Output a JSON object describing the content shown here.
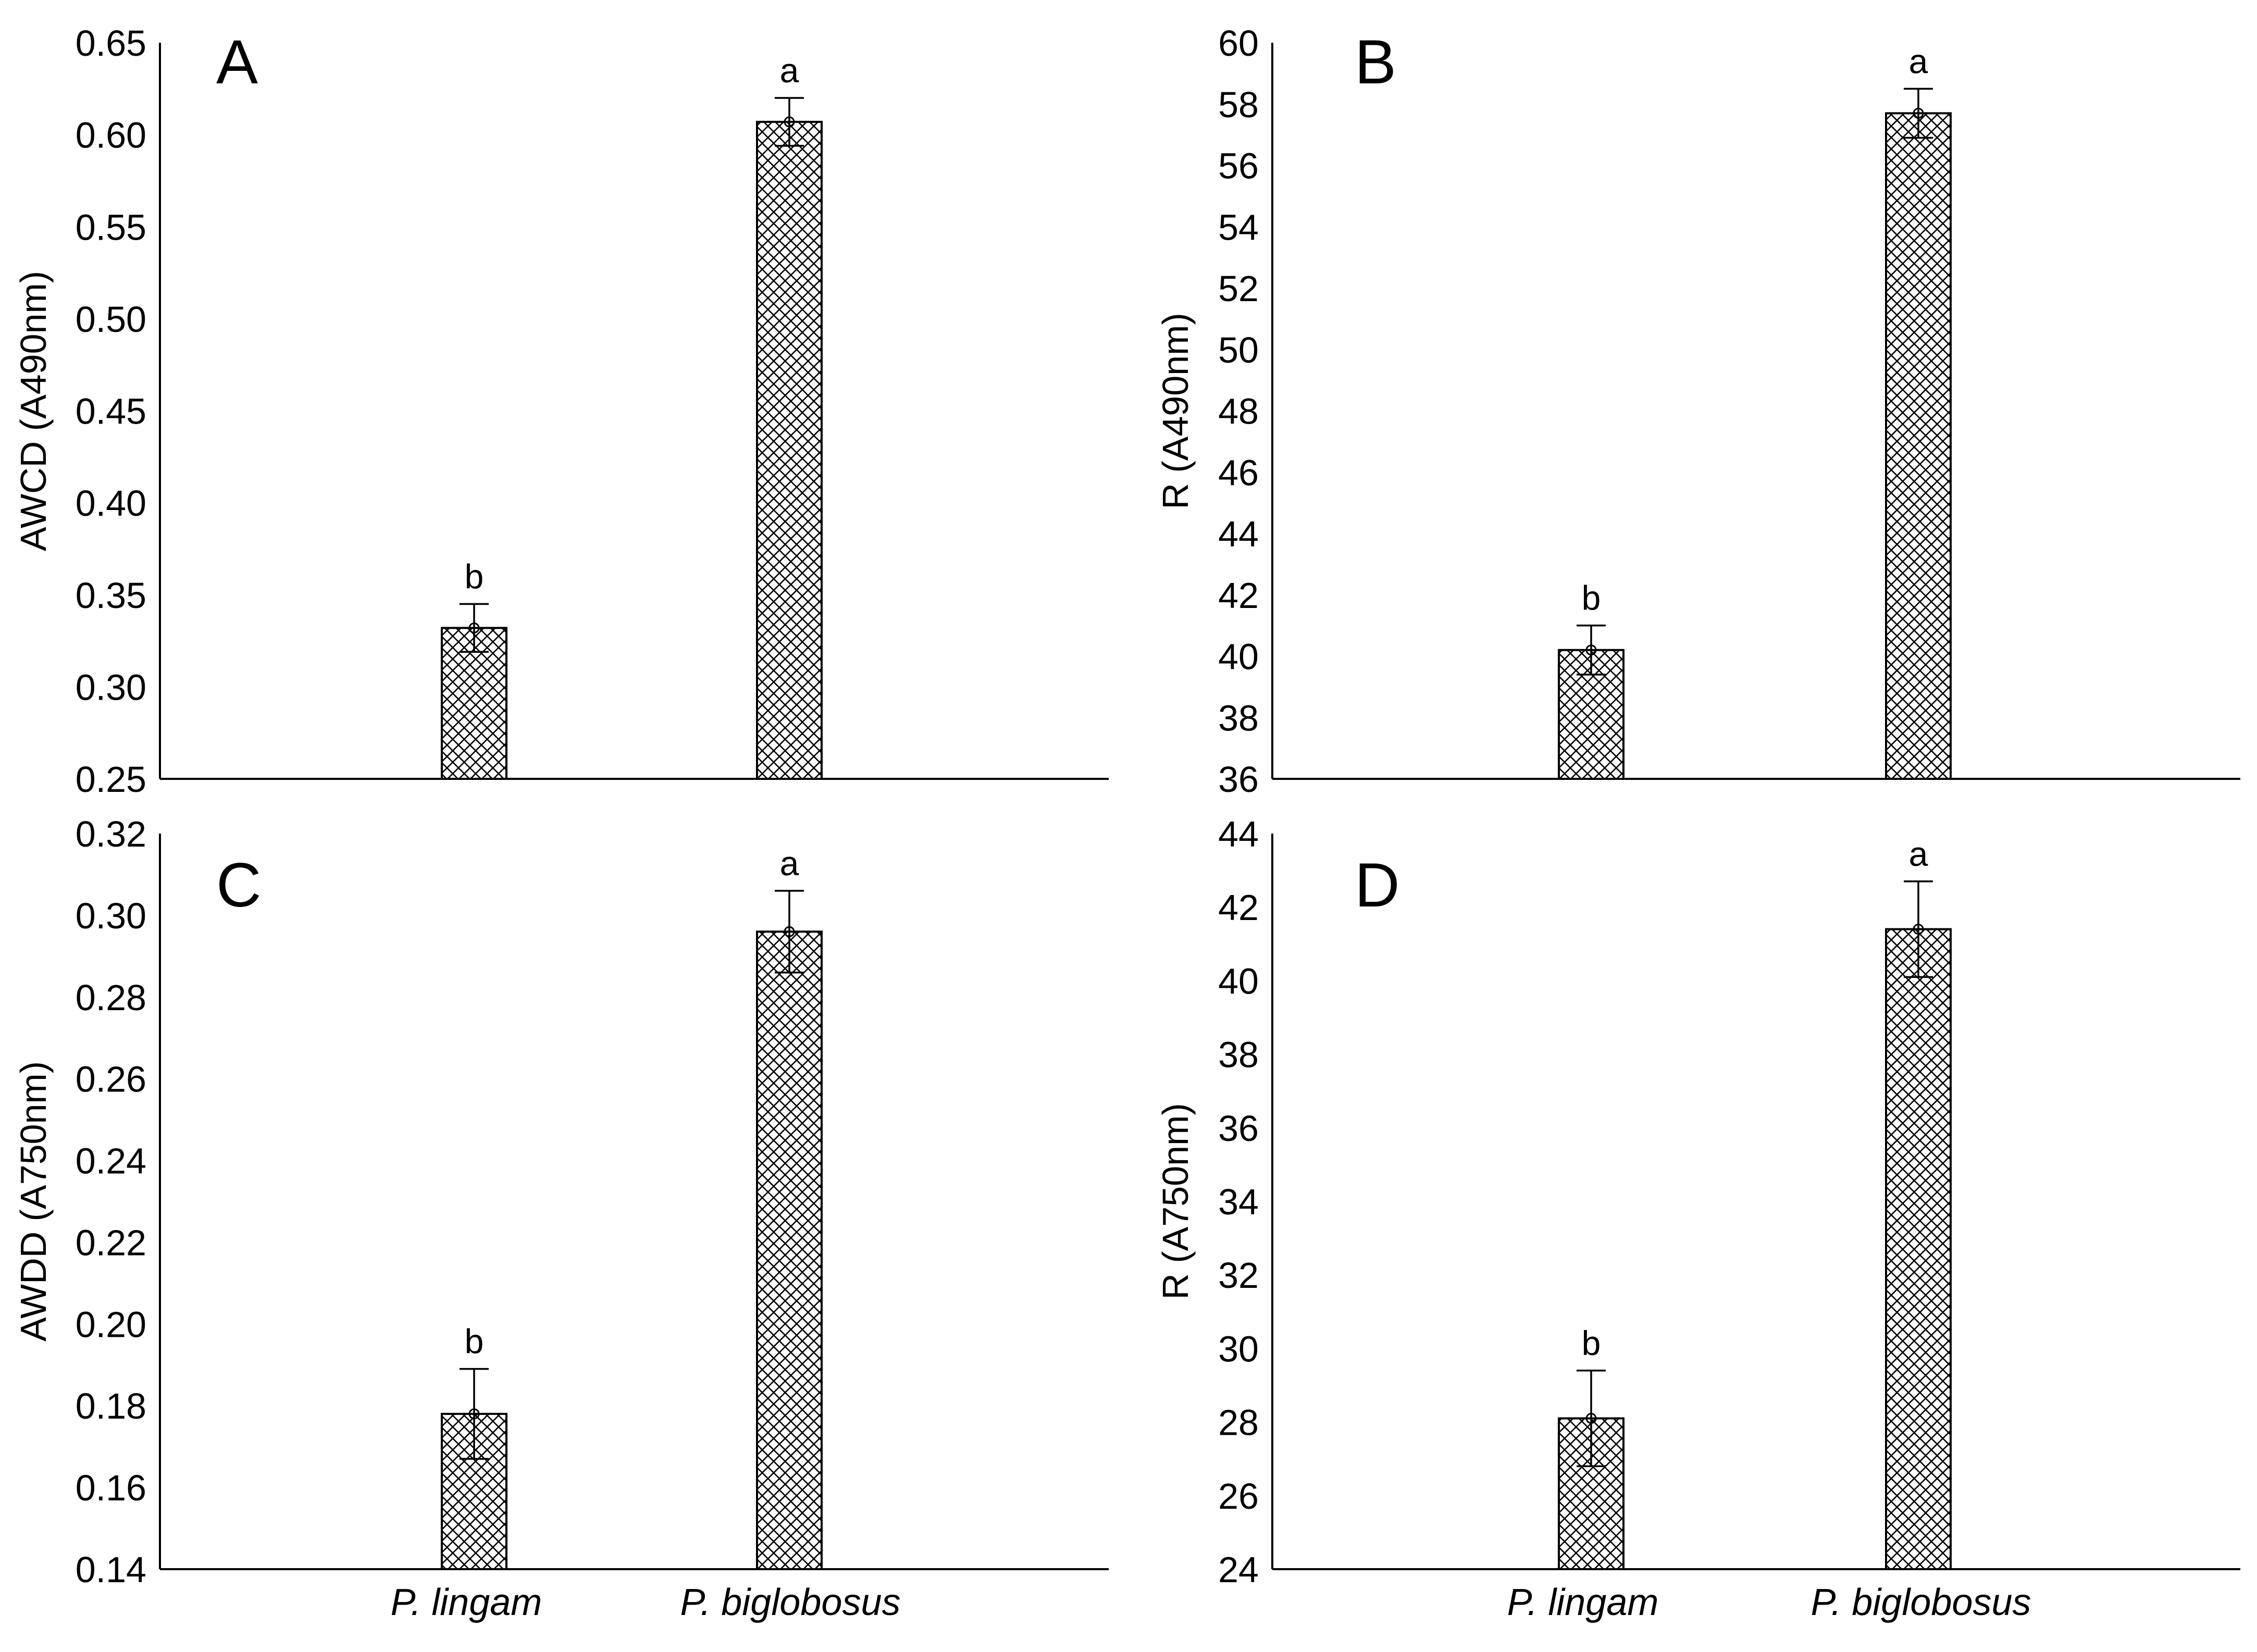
{
  "chart_data": [
    {
      "type": "bar",
      "panel_label": "A",
      "categories": [
        "P. lingam",
        "P. biglobosus"
      ],
      "values": [
        0.332,
        0.607
      ],
      "errors": [
        0.013,
        0.013
      ],
      "significance": [
        "b",
        "a"
      ],
      "title": "",
      "xlabel": "",
      "ylabel": "AWCD (A490nm)",
      "ylim": [
        0.25,
        0.65
      ],
      "yticks": [
        0.25,
        0.3,
        0.35,
        0.4,
        0.45,
        0.5,
        0.55,
        0.6,
        0.65
      ],
      "ytick_labels": [
        "0.25",
        "0.30",
        "0.35",
        "0.40",
        "0.45",
        "0.50",
        "0.55",
        "0.60",
        "0.65"
      ],
      "show_category_labels": false
    },
    {
      "type": "bar",
      "panel_label": "B",
      "categories": [
        "P. lingam",
        "P. biglobosus"
      ],
      "values": [
        40.2,
        57.7
      ],
      "errors": [
        0.8,
        0.8
      ],
      "significance": [
        "b",
        "a"
      ],
      "title": "",
      "xlabel": "",
      "ylabel": "R (A490nm)",
      "ylim": [
        36,
        60
      ],
      "yticks": [
        36,
        38,
        40,
        42,
        44,
        46,
        48,
        50,
        52,
        54,
        56,
        58,
        60
      ],
      "ytick_labels": [
        "36",
        "38",
        "40",
        "42",
        "44",
        "46",
        "48",
        "50",
        "52",
        "54",
        "56",
        "58",
        "60"
      ],
      "show_category_labels": false
    },
    {
      "type": "bar",
      "panel_label": "C",
      "categories": [
        "P. lingam",
        "P. biglobosus"
      ],
      "values": [
        0.178,
        0.296
      ],
      "errors": [
        0.011,
        0.01
      ],
      "significance": [
        "b",
        "a"
      ],
      "title": "",
      "xlabel": "",
      "ylabel": "AWDD (A750nm)",
      "ylim": [
        0.14,
        0.32
      ],
      "yticks": [
        0.14,
        0.16,
        0.18,
        0.2,
        0.22,
        0.24,
        0.26,
        0.28,
        0.3,
        0.32
      ],
      "ytick_labels": [
        "0.14",
        "0.16",
        "0.18",
        "0.20",
        "0.22",
        "0.24",
        "0.26",
        "0.28",
        "0.30",
        "0.32"
      ],
      "show_category_labels": true
    },
    {
      "type": "bar",
      "panel_label": "D",
      "categories": [
        "P. lingam",
        "P. biglobosus"
      ],
      "values": [
        28.1,
        41.4
      ],
      "errors": [
        1.3,
        1.3
      ],
      "significance": [
        "b",
        "a"
      ],
      "title": "",
      "xlabel": "",
      "ylabel": "R (A750nm)",
      "ylim": [
        24,
        44
      ],
      "yticks": [
        24,
        26,
        28,
        30,
        32,
        34,
        36,
        38,
        40,
        42,
        44
      ],
      "ytick_labels": [
        "24",
        "26",
        "28",
        "30",
        "32",
        "34",
        "36",
        "38",
        "40",
        "42",
        "44"
      ],
      "show_category_labels": true
    }
  ]
}
